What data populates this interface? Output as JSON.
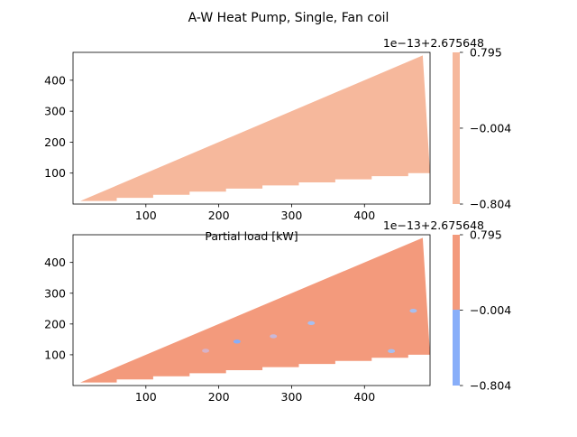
{
  "title": "A-W Heat Pump, Single, Fan coil",
  "chart_data": [
    {
      "type": "heatmap",
      "name": "top",
      "xlabel": "Partial load [kW]",
      "ylabel": "",
      "xlim": [
        0,
        490
      ],
      "ylim": [
        0,
        490
      ],
      "xticks": [
        100,
        200,
        300,
        400
      ],
      "yticks": [
        100,
        200,
        300,
        400
      ],
      "colorbar": {
        "offset_text": "1e−13+2.675648",
        "ticks": [
          "0.795",
          "−0.004",
          "−0.804"
        ],
        "range": [
          -0.804,
          0.795
        ],
        "levels": [
          {
            "from": -0.804,
            "to": 0.795,
            "color": "#f6b89c"
          }
        ]
      },
      "region": {
        "upper_edge": [
          [
            10,
            10
          ],
          [
            480,
            480
          ]
        ],
        "lower_edge_steps": [
          [
            10,
            10
          ],
          [
            60,
            20
          ],
          [
            110,
            30
          ],
          [
            160,
            40
          ],
          [
            210,
            50
          ],
          [
            260,
            60
          ],
          [
            310,
            70
          ],
          [
            360,
            80
          ],
          [
            410,
            90
          ],
          [
            460,
            100
          ],
          [
            490,
            100
          ]
        ],
        "fill": "#f6b89c"
      },
      "patches": []
    },
    {
      "type": "heatmap",
      "name": "bottom",
      "xlabel": "",
      "ylabel": "",
      "xlim": [
        0,
        490
      ],
      "ylim": [
        0,
        490
      ],
      "xticks": [
        100,
        200,
        300,
        400
      ],
      "yticks": [
        100,
        200,
        300,
        400
      ],
      "colorbar": {
        "offset_text": "1e−13+2.675648",
        "ticks": [
          "0.795",
          "−0.004",
          "−0.804"
        ],
        "range": [
          -0.804,
          0.795
        ],
        "levels": [
          {
            "from": -0.804,
            "to": 0.0,
            "color": "#88aef9"
          },
          {
            "from": 0.0,
            "to": 0.795,
            "color": "#f39a7c"
          }
        ]
      },
      "region": {
        "upper_edge": [
          [
            10,
            10
          ],
          [
            480,
            480
          ]
        ],
        "lower_edge_steps": [
          [
            10,
            10
          ],
          [
            60,
            20
          ],
          [
            110,
            30
          ],
          [
            160,
            40
          ],
          [
            210,
            50
          ],
          [
            260,
            60
          ],
          [
            310,
            70
          ],
          [
            360,
            80
          ],
          [
            410,
            90
          ],
          [
            460,
            100
          ],
          [
            490,
            100
          ]
        ],
        "fill": "#f39a7c"
      },
      "patches": [
        {
          "x": 225,
          "y": 143,
          "color": "#88aef9"
        },
        {
          "x": 275,
          "y": 160,
          "color": "#c8b8d8"
        },
        {
          "x": 327,
          "y": 203,
          "color": "#a7bff0"
        },
        {
          "x": 437,
          "y": 112,
          "color": "#a7bff0"
        },
        {
          "x": 467,
          "y": 243,
          "color": "#a7bff0"
        },
        {
          "x": 182,
          "y": 113,
          "color": "#d7b2c8"
        }
      ]
    }
  ]
}
